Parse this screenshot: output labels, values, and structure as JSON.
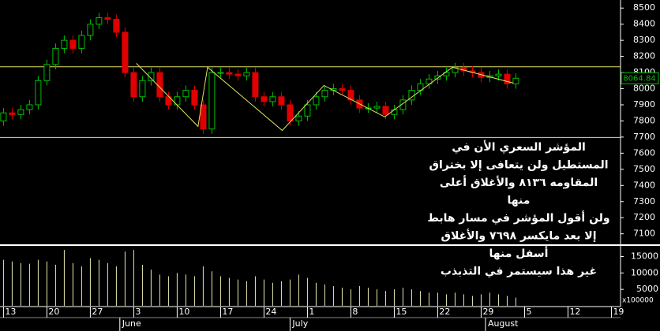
{
  "chart_data": {
    "type": "candlestick",
    "open": [
      7800,
      7850,
      7840,
      7870,
      7900,
      8050,
      8150,
      8250,
      8300,
      8250,
      8330,
      8400,
      8440,
      8430,
      8350,
      8100,
      7950,
      8050,
      8100,
      7950,
      7900,
      7950,
      7990,
      7900,
      7750,
      8100,
      8100,
      8090,
      8080,
      8100,
      7950,
      7920,
      7950,
      7900,
      7800,
      7830,
      7900,
      7950,
      7990,
      8000,
      7990,
      7930,
      7880,
      7880,
      7890,
      7840,
      7870,
      7930,
      7990,
      8030,
      8060,
      8080,
      8100,
      8130,
      8110,
      8100,
      8070,
      8080,
      8090,
      8030
    ],
    "high": [
      7880,
      7880,
      7900,
      7930,
      8080,
      8180,
      8280,
      8330,
      8330,
      8360,
      8430,
      8470,
      8470,
      8460,
      8380,
      8130,
      8080,
      8130,
      8130,
      7980,
      7980,
      8020,
      8020,
      7930,
      8130,
      8130,
      8130,
      8120,
      8130,
      8130,
      7980,
      7980,
      7980,
      7930,
      7860,
      7930,
      7980,
      8020,
      8030,
      8030,
      8020,
      7960,
      7910,
      7920,
      7920,
      7900,
      7960,
      8020,
      8060,
      8090,
      8110,
      8130,
      8160,
      8160,
      8140,
      8130,
      8110,
      8120,
      8120,
      8095
    ],
    "low": [
      7770,
      7810,
      7810,
      7840,
      7870,
      8020,
      8120,
      8220,
      8220,
      8220,
      8300,
      8370,
      8400,
      8320,
      8070,
      7920,
      7920,
      8020,
      7920,
      7870,
      7870,
      7920,
      7870,
      7720,
      7720,
      8070,
      8060,
      8050,
      8050,
      7920,
      7890,
      7890,
      7870,
      7770,
      7770,
      7800,
      7870,
      7920,
      7960,
      7960,
      7900,
      7850,
      7850,
      7850,
      7810,
      7810,
      7840,
      7900,
      7960,
      8000,
      8030,
      8050,
      8070,
      8080,
      8070,
      8040,
      8040,
      8050,
      8000,
      8000
    ],
    "close": [
      7850,
      7840,
      7870,
      7900,
      8050,
      8150,
      8250,
      8300,
      8250,
      8330,
      8400,
      8440,
      8430,
      8350,
      8100,
      7950,
      8050,
      8100,
      7950,
      7900,
      7950,
      7990,
      7900,
      7750,
      8100,
      8100,
      8090,
      8080,
      8100,
      7950,
      7920,
      7950,
      7900,
      7800,
      7830,
      7900,
      7950,
      7990,
      8000,
      7990,
      7930,
      7880,
      7880,
      7890,
      7840,
      7870,
      7930,
      7990,
      8030,
      8060,
      8080,
      8100,
      8130,
      8110,
      8100,
      8070,
      8080,
      8090,
      8030,
      8064.84
    ],
    "volume": [
      14000,
      13500,
      13000,
      12800,
      14000,
      13500,
      12500,
      17000,
      13000,
      12000,
      14500,
      14000,
      13000,
      12000,
      16500,
      17000,
      12500,
      11000,
      9500,
      9000,
      10000,
      9500,
      9000,
      12000,
      10500,
      9000,
      8500,
      8000,
      7500,
      9000,
      8000,
      7000,
      7500,
      8000,
      9500,
      8500,
      7000,
      6500,
      6000,
      5500,
      5000,
      6000,
      5500,
      5000,
      4500,
      5000,
      5500,
      5000,
      4500,
      4000,
      4000,
      3500,
      4000,
      3500,
      3000,
      3500,
      4000,
      3500,
      3000,
      2500
    ],
    "up_color": "#00c000",
    "down_color": "#e00000",
    "volume_color": "#e8e8b0",
    "xlim": [
      -0.4,
      71.05
    ],
    "xticks": [
      {
        "value": 0,
        "label": "13"
      },
      {
        "value": 5,
        "label": "20"
      },
      {
        "value": 10,
        "label": "27"
      },
      {
        "value": 15,
        "label": "3"
      },
      {
        "value": 20,
        "label": "10"
      },
      {
        "value": 25,
        "label": "17"
      },
      {
        "value": 30,
        "label": "24"
      },
      {
        "value": 35,
        "label": "1"
      },
      {
        "value": 40,
        "label": "8"
      },
      {
        "value": 45,
        "label": "15"
      },
      {
        "value": 50,
        "label": "22"
      },
      {
        "value": 55,
        "label": "29"
      },
      {
        "value": 60,
        "label": "5"
      },
      {
        "value": 65,
        "label": "12"
      },
      {
        "value": 70,
        "label": "19"
      }
    ],
    "month_ticks": [
      {
        "value": 13.4,
        "label": "June"
      },
      {
        "value": 33,
        "label": "July"
      },
      {
        "value": 55.5,
        "label": "August"
      }
    ],
    "ylim": [
      7030,
      8550
    ],
    "yticks": [
      7100,
      7200,
      7300,
      7400,
      7500,
      7600,
      7700,
      7800,
      7900,
      8000,
      8100,
      8200,
      8300,
      8400,
      8500
    ],
    "volume_ylim": [
      0,
      18000
    ],
    "volume_ticks": [
      5000,
      10000,
      15000
    ],
    "volume_unit": "x100000",
    "last_price": 8064.84,
    "levels": [
      8136,
      7698
    ],
    "level_color": "#e0e060",
    "trend_line": {
      "x": [
        15.3,
        22.4,
        23.5,
        32.1,
        36.9,
        43.9,
        51.7,
        58.7
      ],
      "y": [
        8157,
        7766,
        8133,
        7741,
        8020,
        7825,
        8133,
        8035
      ],
      "color": "#e0e060"
    },
    "annotation": [
      "المؤشر السعري الأن في",
      "المستطيل ولن يتعافى إلا بختراق",
      "المقاومه ٨١٣٦ والأغلاق أعلى",
      "منها",
      "ولن أقول المؤشر في مسار هابط",
      "إلا بعد مايكسر ٧٦٩٨ والأغلاق",
      "أسفل منها",
      "غير هذا سيستمر في التذبذب"
    ]
  }
}
